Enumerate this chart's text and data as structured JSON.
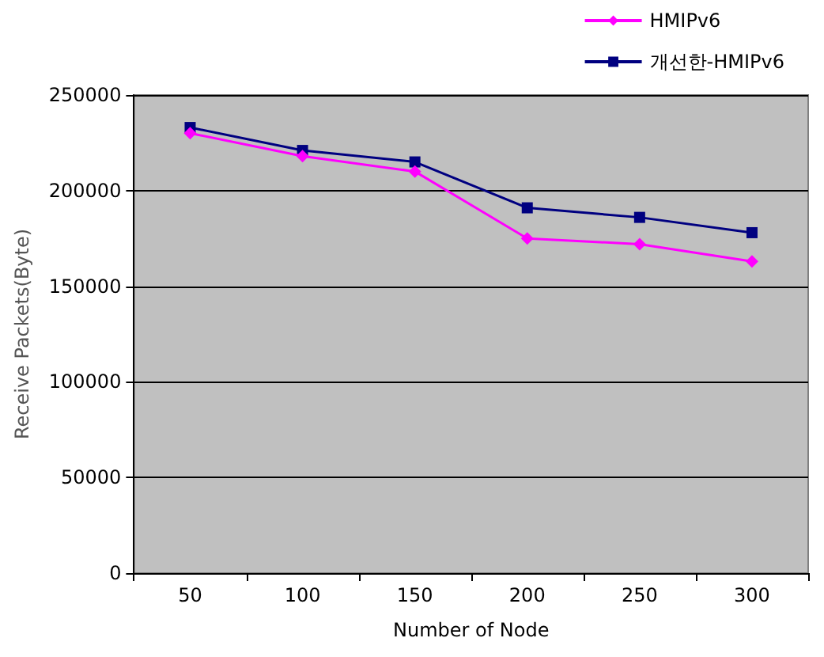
{
  "chart_data": {
    "type": "line",
    "xlabel": "Number of Node",
    "ylabel": "Receive Packets(Byte)",
    "categories": [
      "50",
      "100",
      "150",
      "200",
      "250",
      "300"
    ],
    "series": [
      {
        "name": "HMIPv6",
        "color": "#ff00ff",
        "marker": "diamond",
        "values": [
          230000,
          218000,
          210000,
          175000,
          172000,
          163000
        ]
      },
      {
        "name": "개선한-HMIPv6",
        "color": "#000080",
        "marker": "square",
        "values": [
          233000,
          221000,
          215000,
          191000,
          186000,
          178000
        ]
      }
    ],
    "ylim": [
      0,
      250000
    ],
    "yticks": [
      0,
      50000,
      100000,
      150000,
      200000,
      250000
    ],
    "grid": "y",
    "legend": "top right"
  }
}
